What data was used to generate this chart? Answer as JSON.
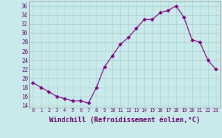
{
  "x": [
    0,
    1,
    2,
    3,
    4,
    5,
    6,
    7,
    8,
    9,
    10,
    11,
    12,
    13,
    14,
    15,
    16,
    17,
    18,
    19,
    20,
    21,
    22,
    23
  ],
  "y": [
    19,
    18,
    17,
    16,
    15.5,
    15,
    15,
    14.5,
    18,
    22.5,
    25,
    27.5,
    29,
    31,
    33,
    33,
    34.5,
    35,
    36,
    33.5,
    28.5,
    28,
    24,
    22
  ],
  "line_color": "#800080",
  "marker": "D",
  "marker_size": 2.5,
  "bg_color": "#c8eaea",
  "xlabel": "Windchill (Refroidissement éolien,°C)",
  "ytick_values": [
    14,
    16,
    18,
    20,
    22,
    24,
    26,
    28,
    30,
    32,
    34,
    36
  ],
  "ytick_labels": [
    "14",
    "16",
    "18",
    "20",
    "22",
    "24",
    "26",
    "28",
    "30",
    "32",
    "34",
    "36"
  ],
  "xtick_labels": [
    "0",
    "1",
    "2",
    "3",
    "4",
    "5",
    "6",
    "7",
    "8",
    "9",
    "10",
    "11",
    "12",
    "13",
    "14",
    "15",
    "16",
    "17",
    "18",
    "19",
    "20",
    "21",
    "22",
    "23"
  ],
  "ylim": [
    13.5,
    37
  ],
  "xlim": [
    -0.5,
    23.5
  ],
  "grid_color": "#b0d0d0",
  "spine_color": "#999999",
  "text_color": "#660066"
}
